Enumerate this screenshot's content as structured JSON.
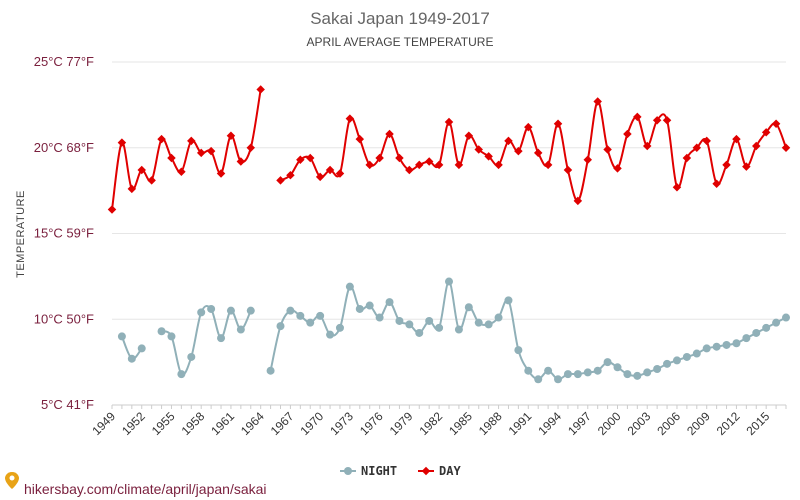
{
  "chart_data": {
    "type": "line",
    "title": "Sakai Japan 1949-2017",
    "subtitle": "APRIL AVERAGE TEMPERATURE",
    "ylabel": "TEMPERATURE",
    "ylim": [
      5,
      25
    ],
    "yticks": [
      {
        "value": 25,
        "label": "25°C 77°F"
      },
      {
        "value": 20,
        "label": "20°C 68°F"
      },
      {
        "value": 15,
        "label": "15°C 59°F"
      },
      {
        "value": 10,
        "label": "10°C 50°F"
      },
      {
        "value": 5,
        "label": "5°C 41°F"
      }
    ],
    "xticks": [
      1949,
      1952,
      1955,
      1958,
      1961,
      1964,
      1967,
      1970,
      1973,
      1976,
      1979,
      1982,
      1985,
      1988,
      1991,
      1994,
      1997,
      2000,
      2003,
      2006,
      2009,
      2012,
      2015
    ],
    "x": [
      1949,
      1950,
      1951,
      1952,
      1953,
      1954,
      1955,
      1956,
      1957,
      1958,
      1959,
      1960,
      1961,
      1962,
      1963,
      1964,
      1965,
      1966,
      1967,
      1968,
      1969,
      1970,
      1971,
      1972,
      1973,
      1974,
      1975,
      1976,
      1977,
      1978,
      1979,
      1980,
      1981,
      1982,
      1983,
      1984,
      1985,
      1986,
      1987,
      1988,
      1989,
      1990,
      1991,
      1992,
      1993,
      1994,
      1995,
      1996,
      1997,
      1998,
      1999,
      2000,
      2001,
      2002,
      2003,
      2004,
      2005,
      2006,
      2007,
      2008,
      2009,
      2010,
      2011,
      2012,
      2013,
      2014,
      2015,
      2016,
      2017
    ],
    "grid": true,
    "legend": "bottom-center",
    "series": [
      {
        "name": "NIGHT",
        "color": "#90b0b8",
        "values": [
          null,
          9.0,
          7.7,
          8.3,
          null,
          9.3,
          9.0,
          6.8,
          7.8,
          10.4,
          10.6,
          8.9,
          10.5,
          9.4,
          10.5,
          null,
          7.0,
          9.6,
          10.5,
          10.2,
          9.8,
          10.2,
          9.1,
          9.5,
          11.9,
          10.6,
          10.8,
          10.1,
          11.0,
          9.9,
          9.7,
          9.2,
          9.9,
          9.5,
          12.2,
          9.4,
          10.7,
          9.8,
          9.7,
          10.1,
          11.1,
          8.2,
          7.0,
          6.5,
          7.0,
          6.5,
          6.8,
          6.8,
          6.9,
          7.0,
          7.5,
          7.2,
          6.8,
          6.7,
          6.9,
          7.1,
          7.4,
          7.6,
          7.8,
          8.0,
          8.3,
          8.4,
          8.5,
          8.6,
          8.9,
          9.2,
          9.5,
          9.8,
          10.1
        ]
      },
      {
        "name": "DAY",
        "color": "#e00000",
        "values": [
          16.4,
          20.3,
          17.6,
          18.7,
          18.1,
          20.5,
          19.4,
          18.6,
          20.4,
          19.7,
          19.8,
          18.5,
          20.7,
          19.2,
          20.0,
          23.4,
          null,
          18.1,
          18.4,
          19.3,
          19.4,
          18.3,
          18.7,
          18.5,
          21.7,
          20.5,
          19.0,
          19.4,
          20.8,
          19.4,
          18.7,
          19.0,
          19.2,
          19.0,
          21.5,
          19.0,
          20.7,
          19.9,
          19.5,
          19.0,
          20.4,
          19.8,
          21.2,
          19.7,
          19.0,
          21.4,
          18.7,
          16.9,
          19.3,
          22.7,
          19.9,
          18.8,
          20.8,
          21.8,
          20.1,
          21.6,
          21.6,
          17.7,
          19.4,
          20.0,
          20.4,
          17.9,
          19.0,
          20.5,
          18.9,
          20.1,
          20.9,
          21.4,
          20.0
        ]
      }
    ]
  },
  "footer": {
    "text": "hikersbay.com/climate/april/japan/sakai"
  }
}
